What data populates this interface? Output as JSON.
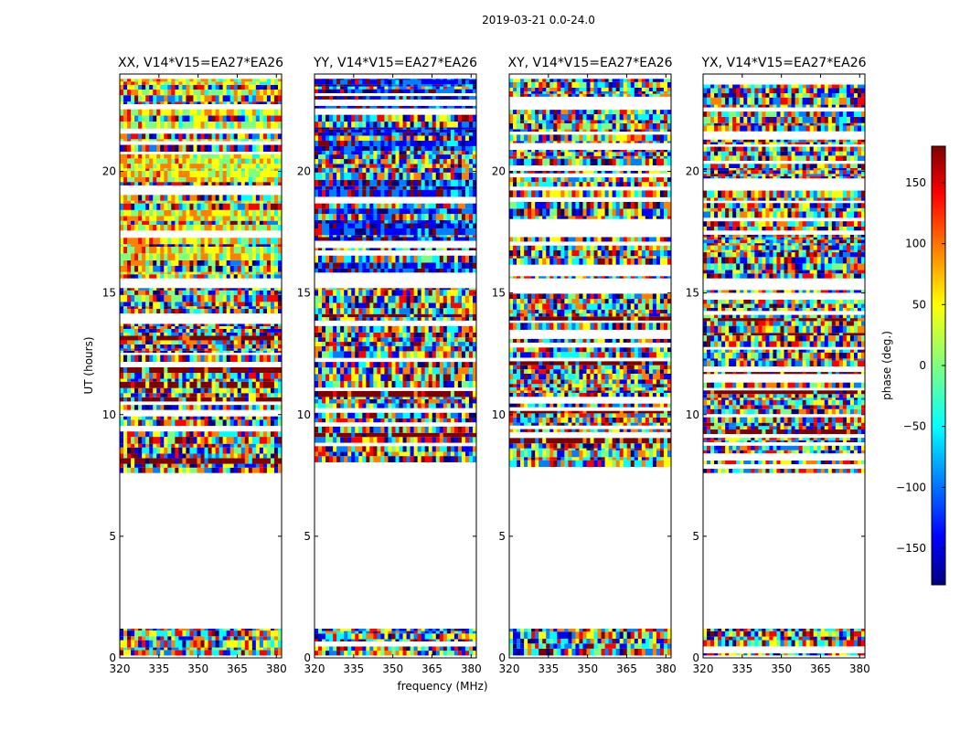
{
  "figure_title": "2019-03-21 0.0-24.0",
  "chart_data": {
    "type": "heatmap",
    "title": "2019-03-21 0.0-24.0",
    "xlabel": "frequency (MHz)",
    "ylabel": "UT (hours)",
    "xlim": [
      320,
      382
    ],
    "ylim": [
      0,
      24
    ],
    "xticks": [
      "320",
      "335",
      "350",
      "365",
      "380"
    ],
    "yticks": [
      "0",
      "5",
      "10",
      "15",
      "20"
    ],
    "colorbar": {
      "label": "phase (deg.)",
      "range": [
        -180,
        180
      ],
      "ticks": [
        "150",
        "100",
        "50",
        "0",
        "−50",
        "−100",
        "−150"
      ],
      "tick_values": [
        150,
        100,
        50,
        0,
        -50,
        -100,
        -150
      ],
      "colormap": "jet"
    },
    "data_bands_hours": [
      [
        0.1,
        1.2
      ],
      [
        7.6,
        15.2
      ],
      [
        15.6,
        23.8
      ]
    ],
    "panels": [
      {
        "title": "XX, V14*V15=EA27*EA26",
        "mean_phase_upper": 60
      },
      {
        "title": "YY, V14*V15=EA27*EA26",
        "mean_phase_upper": -150
      },
      {
        "title": "XY, V14*V15=EA27*EA26",
        "mean_phase_upper": null
      },
      {
        "title": "YX, V14*V15=EA27*EA26",
        "mean_phase_upper": null
      }
    ]
  },
  "colors": {
    "jet": [
      "#00007f",
      "#0000ff",
      "#007fff",
      "#00ffff",
      "#7fff7f",
      "#ffff00",
      "#ff7f00",
      "#ff0000",
      "#7f0000"
    ],
    "axis": "#000000",
    "background": "#ffffff"
  }
}
